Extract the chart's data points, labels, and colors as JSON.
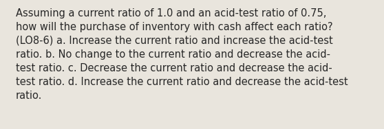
{
  "lines": [
    "Assuming a current ratio of 1.0 and an acid-test ratio of 0.75,",
    "how will the purchase of inventory with cash affect each ratio?",
    "(LO8-6) a. Increase the current ratio and increase the acid-test",
    "ratio. b. No change to the current ratio and decrease the acid-",
    "test ratio. c. Decrease the current ratio and decrease the acid-",
    "test ratio. d. Increase the current ratio and decrease the acid-test",
    "ratio."
  ],
  "background_color": "#e9e5dd",
  "text_color": "#272727",
  "font_size": 10.5,
  "font_family": "DejaVu Sans",
  "fig_width": 5.58,
  "fig_height": 1.88,
  "dpi": 100
}
